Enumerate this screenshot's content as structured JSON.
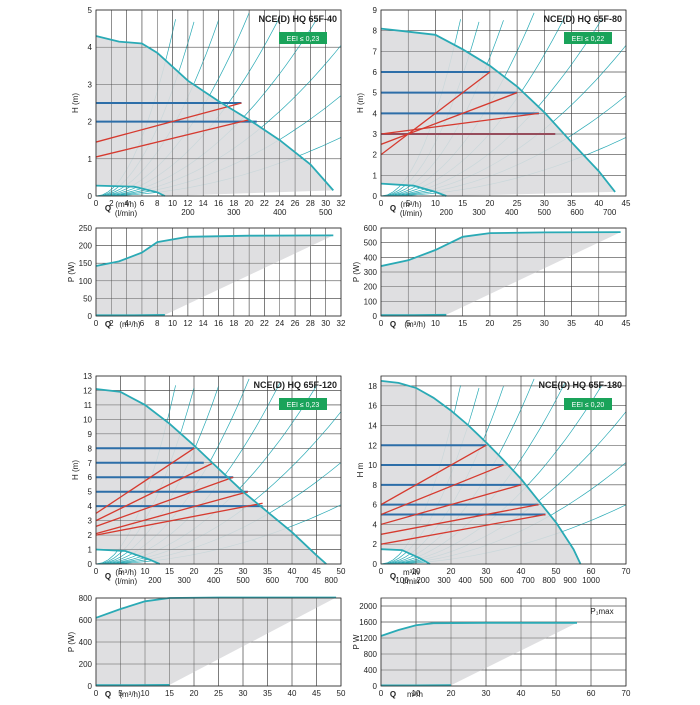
{
  "eei_color": "#1aa35a",
  "curve_color": "#2aaab5",
  "op_color": "#2d6ea8",
  "red_color": "#d63a2f",
  "fill_color": "#dcdcde",
  "chart_data": [
    {
      "id": "c40",
      "type": "line",
      "title": "NCE(D) HQ 65F-40",
      "eei": "EEI ≤ 0,23",
      "h_axis": {
        "label": "H (m)",
        "ylim": [
          0,
          5
        ],
        "yticks": [
          "0",
          "1",
          "2",
          "3",
          "4",
          "5"
        ],
        "xlim": [
          0,
          32
        ],
        "xticks": [
          "0",
          "2",
          "4",
          "6",
          "8",
          "10",
          "12",
          "14",
          "16",
          "18",
          "20",
          "22",
          "24",
          "26",
          "28",
          "30",
          "32"
        ],
        "q_label": "Q",
        "q_unit": "(m³/h)",
        "l_unit": "(l/min)",
        "lticks": [
          {
            "v": 200,
            "label": "200"
          },
          {
            "v": 300,
            "label": "300"
          },
          {
            "v": 400,
            "label": "400"
          },
          {
            "v": 500,
            "label": "500"
          }
        ]
      },
      "h_max_curve": [
        [
          0,
          4.3
        ],
        [
          3,
          4.15
        ],
        [
          6,
          4.1
        ],
        [
          8,
          3.85
        ],
        [
          12,
          3.1
        ],
        [
          16,
          2.55
        ],
        [
          20,
          2.05
        ],
        [
          24,
          1.5
        ],
        [
          28,
          0.85
        ],
        [
          31,
          0.15
        ]
      ],
      "h_min_curve": [
        [
          0,
          0.28
        ],
        [
          5,
          0.25
        ],
        [
          8,
          0.1
        ],
        [
          9,
          0
        ]
      ],
      "op_lines": [
        [
          0,
          2.5,
          19
        ],
        [
          0,
          2.0,
          21
        ]
      ],
      "red_lines": [
        [
          0,
          1.05,
          20,
          2.05
        ],
        [
          0,
          1.45,
          19,
          2.5
        ]
      ],
      "p_axis": {
        "label": "P (W)",
        "ylim": [
          0,
          250
        ],
        "yticks": [
          "0",
          "50",
          "100",
          "150",
          "200",
          "250"
        ],
        "xlim": [
          0,
          32
        ],
        "xticks": [
          "0",
          "2",
          "4",
          "6",
          "8",
          "10",
          "12",
          "14",
          "16",
          "18",
          "20",
          "22",
          "24",
          "26",
          "28",
          "30",
          "32"
        ],
        "q_label": "Q",
        "q_unit": "(m³/h)"
      },
      "p_max_curve": [
        [
          0,
          142
        ],
        [
          3,
          155
        ],
        [
          6,
          180
        ],
        [
          8,
          210
        ],
        [
          12,
          225
        ],
        [
          20,
          228
        ],
        [
          31,
          229
        ]
      ],
      "p_min_curve": [
        [
          0,
          2
        ],
        [
          5,
          2
        ],
        [
          9,
          3
        ]
      ]
    },
    {
      "id": "c80",
      "type": "line",
      "title": "NCE(D) HQ 65F-80",
      "eei": "EEI ≤ 0,22",
      "h_axis": {
        "label": "H (m)",
        "ylim": [
          0,
          9
        ],
        "yticks": [
          "0",
          "1",
          "2",
          "3",
          "4",
          "5",
          "6",
          "7",
          "8",
          "9"
        ],
        "xlim": [
          0,
          45
        ],
        "xticks": [
          "0",
          "5",
          "10",
          "15",
          "20",
          "25",
          "30",
          "35",
          "40",
          "45"
        ],
        "q_label": "Q",
        "q_unit": "(m³/h)",
        "l_unit": "(l/min)",
        "lticks": [
          {
            "v": 200,
            "label": "200"
          },
          {
            "v": 300,
            "label": "300"
          },
          {
            "v": 400,
            "label": "400"
          },
          {
            "v": 500,
            "label": "500"
          },
          {
            "v": 600,
            "label": "600"
          },
          {
            "v": 700,
            "label": "700"
          }
        ]
      },
      "h_max_curve": [
        [
          0,
          8.1
        ],
        [
          5,
          7.95
        ],
        [
          10,
          7.8
        ],
        [
          15,
          7.1
        ],
        [
          20,
          6.3
        ],
        [
          25,
          5.3
        ],
        [
          30,
          4.05
        ],
        [
          35,
          2.6
        ],
        [
          40,
          1.2
        ],
        [
          43,
          0.2
        ]
      ],
      "h_min_curve": [
        [
          0,
          0.6
        ],
        [
          6,
          0.5
        ],
        [
          10,
          0.2
        ],
        [
          12,
          0
        ]
      ],
      "op_lines": [
        [
          0,
          6.0,
          20
        ],
        [
          0,
          5.0,
          25
        ],
        [
          0,
          4.0,
          29
        ],
        [
          0,
          3.0,
          32
        ]
      ],
      "red_lines": [
        [
          0,
          2.0,
          20,
          6.0
        ],
        [
          0,
          2.5,
          25,
          5.0
        ],
        [
          0,
          3.0,
          29,
          4.0
        ],
        [
          0,
          3.0,
          32,
          3.0
        ]
      ],
      "p_axis": {
        "label": "P (W)",
        "ylim": [
          0,
          600
        ],
        "yticks": [
          "0",
          "100",
          "200",
          "300",
          "400",
          "500",
          "600"
        ],
        "xlim": [
          0,
          45
        ],
        "xticks": [
          "0",
          "5",
          "10",
          "15",
          "20",
          "25",
          "30",
          "35",
          "40",
          "45"
        ],
        "q_label": "Q",
        "q_unit": "(m³/h)"
      },
      "p_max_curve": [
        [
          0,
          340
        ],
        [
          5,
          380
        ],
        [
          10,
          450
        ],
        [
          15,
          540
        ],
        [
          20,
          565
        ],
        [
          30,
          570
        ],
        [
          44,
          572
        ]
      ],
      "p_min_curve": [
        [
          0,
          6
        ],
        [
          6,
          6
        ],
        [
          12,
          8
        ]
      ]
    },
    {
      "id": "c120",
      "type": "line",
      "title": "NCE(D) HQ 65F-120",
      "eei": "EEI ≤ 0,23",
      "h_axis": {
        "label": "H (m)",
        "ylim": [
          0,
          13
        ],
        "yticks": [
          "0",
          "1",
          "2",
          "3",
          "4",
          "5",
          "6",
          "7",
          "8",
          "9",
          "10",
          "11",
          "12",
          "13"
        ],
        "xlim": [
          0,
          50
        ],
        "xticks": [
          "0",
          "5",
          "10",
          "15",
          "20",
          "25",
          "30",
          "35",
          "40",
          "45",
          "50"
        ],
        "q_label": "Q",
        "q_unit": "(m³/h)",
        "l_unit": "(l/min)",
        "lticks": [
          {
            "v": 200,
            "label": "200"
          },
          {
            "v": 300,
            "label": "300"
          },
          {
            "v": 400,
            "label": "400"
          },
          {
            "v": 500,
            "label": "500"
          },
          {
            "v": 600,
            "label": "600"
          },
          {
            "v": 700,
            "label": "700"
          },
          {
            "v": 800,
            "label": "800"
          }
        ]
      },
      "h_max_curve": [
        [
          0,
          12.1
        ],
        [
          5,
          11.9
        ],
        [
          10,
          11.0
        ],
        [
          15,
          9.7
        ],
        [
          20,
          8.2
        ],
        [
          25,
          6.6
        ],
        [
          30,
          5.0
        ],
        [
          35,
          3.6
        ],
        [
          40,
          2.2
        ],
        [
          45,
          0.6
        ],
        [
          47,
          0
        ]
      ],
      "h_min_curve": [
        [
          0,
          1.0
        ],
        [
          6,
          0.9
        ],
        [
          11,
          0.3
        ],
        [
          13,
          0
        ]
      ],
      "op_lines": [
        [
          0,
          8.0,
          20
        ],
        [
          0,
          7.0,
          22
        ],
        [
          0,
          6.0,
          28
        ],
        [
          0,
          5.0,
          31
        ],
        [
          0,
          4.0,
          34
        ]
      ],
      "red_lines": [
        [
          0,
          3.5,
          20,
          8.0
        ],
        [
          0,
          3.0,
          24,
          7.0
        ],
        [
          0,
          2.6,
          28,
          6.0
        ],
        [
          0,
          2.1,
          31,
          5.0
        ],
        [
          0,
          2.0,
          34,
          4.2
        ]
      ],
      "p_axis": {
        "label": "P (W)",
        "ylim": [
          0,
          800
        ],
        "yticks": [
          "0",
          "200",
          "400",
          "600",
          "800"
        ],
        "xlim": [
          0,
          50
        ],
        "xticks": [
          "0",
          "5",
          "10",
          "15",
          "20",
          "25",
          "30",
          "35",
          "40",
          "45",
          "50"
        ],
        "q_label": "Q",
        "q_unit": "(m³/h)"
      },
      "p_max_curve": [
        [
          0,
          620
        ],
        [
          5,
          700
        ],
        [
          10,
          770
        ],
        [
          15,
          800
        ],
        [
          25,
          805
        ],
        [
          49,
          805
        ]
      ],
      "p_min_curve": [
        [
          0,
          8
        ],
        [
          8,
          8
        ],
        [
          15,
          10
        ]
      ]
    },
    {
      "id": "c180",
      "type": "line",
      "title": "NCE(D) HQ 65F-180",
      "eei": "EEI ≤ 0,20",
      "h_axis": {
        "label": "H m",
        "ylim": [
          0,
          19
        ],
        "yticks": [
          "0",
          "2",
          "4",
          "6",
          "8",
          "10",
          "12",
          "14",
          "16",
          "18"
        ],
        "xlim": [
          0,
          70
        ],
        "xticks": [
          "0",
          "10",
          "20",
          "30",
          "40",
          "50",
          "60",
          "70"
        ],
        "q_label": "Q",
        "q_unit": "m³/h",
        "l_unit": "l/min",
        "lticks": [
          {
            "v": 100,
            "label": "100"
          },
          {
            "v": 200,
            "label": "200"
          },
          {
            "v": 300,
            "label": "300"
          },
          {
            "v": 400,
            "label": "400"
          },
          {
            "v": 500,
            "label": "500"
          },
          {
            "v": 600,
            "label": "600"
          },
          {
            "v": 700,
            "label": "700"
          },
          {
            "v": 800,
            "label": "800"
          },
          {
            "v": 900,
            "label": "900"
          },
          {
            "v": 1000,
            "label": "1000"
          }
        ]
      },
      "h_max_curve": [
        [
          0,
          18.5
        ],
        [
          5,
          18.3
        ],
        [
          10,
          17.8
        ],
        [
          15,
          16.8
        ],
        [
          20,
          15.5
        ],
        [
          25,
          14.0
        ],
        [
          30,
          12.3
        ],
        [
          35,
          10.5
        ],
        [
          40,
          8.6
        ],
        [
          45,
          6.4
        ],
        [
          50,
          4.2
        ],
        [
          55,
          1.5
        ],
        [
          57,
          0
        ]
      ],
      "h_min_curve": [
        [
          0,
          1.5
        ],
        [
          6,
          1.4
        ],
        [
          11,
          0.6
        ],
        [
          14,
          0
        ]
      ],
      "op_lines": [
        [
          0,
          12,
          30
        ],
        [
          0,
          10,
          35
        ],
        [
          0,
          8,
          40
        ],
        [
          0,
          6,
          45
        ],
        [
          0,
          5,
          47
        ]
      ],
      "red_lines": [
        [
          0,
          6,
          30,
          12
        ],
        [
          0,
          5,
          35,
          10
        ],
        [
          0,
          4,
          40,
          8
        ],
        [
          0,
          3,
          45,
          6
        ],
        [
          0,
          2,
          47,
          5
        ]
      ],
      "p_axis": {
        "label": "P W",
        "ylim": [
          0,
          2200
        ],
        "yticks": [
          "0",
          "400",
          "800",
          "1200",
          "1600",
          "2000"
        ],
        "xlim": [
          0,
          70
        ],
        "xticks": [
          "0",
          "10",
          "20",
          "30",
          "40",
          "50",
          "60",
          "70"
        ],
        "q_label": "Q",
        "q_unit": "m³/h",
        "pmax_label": "P₁max"
      },
      "p_max_curve": [
        [
          0,
          1250
        ],
        [
          5,
          1400
        ],
        [
          10,
          1520
        ],
        [
          15,
          1570
        ],
        [
          30,
          1580
        ],
        [
          56,
          1580
        ]
      ],
      "p_min_curve": [
        [
          0,
          15
        ],
        [
          10,
          15
        ],
        [
          20,
          20
        ]
      ]
    }
  ]
}
